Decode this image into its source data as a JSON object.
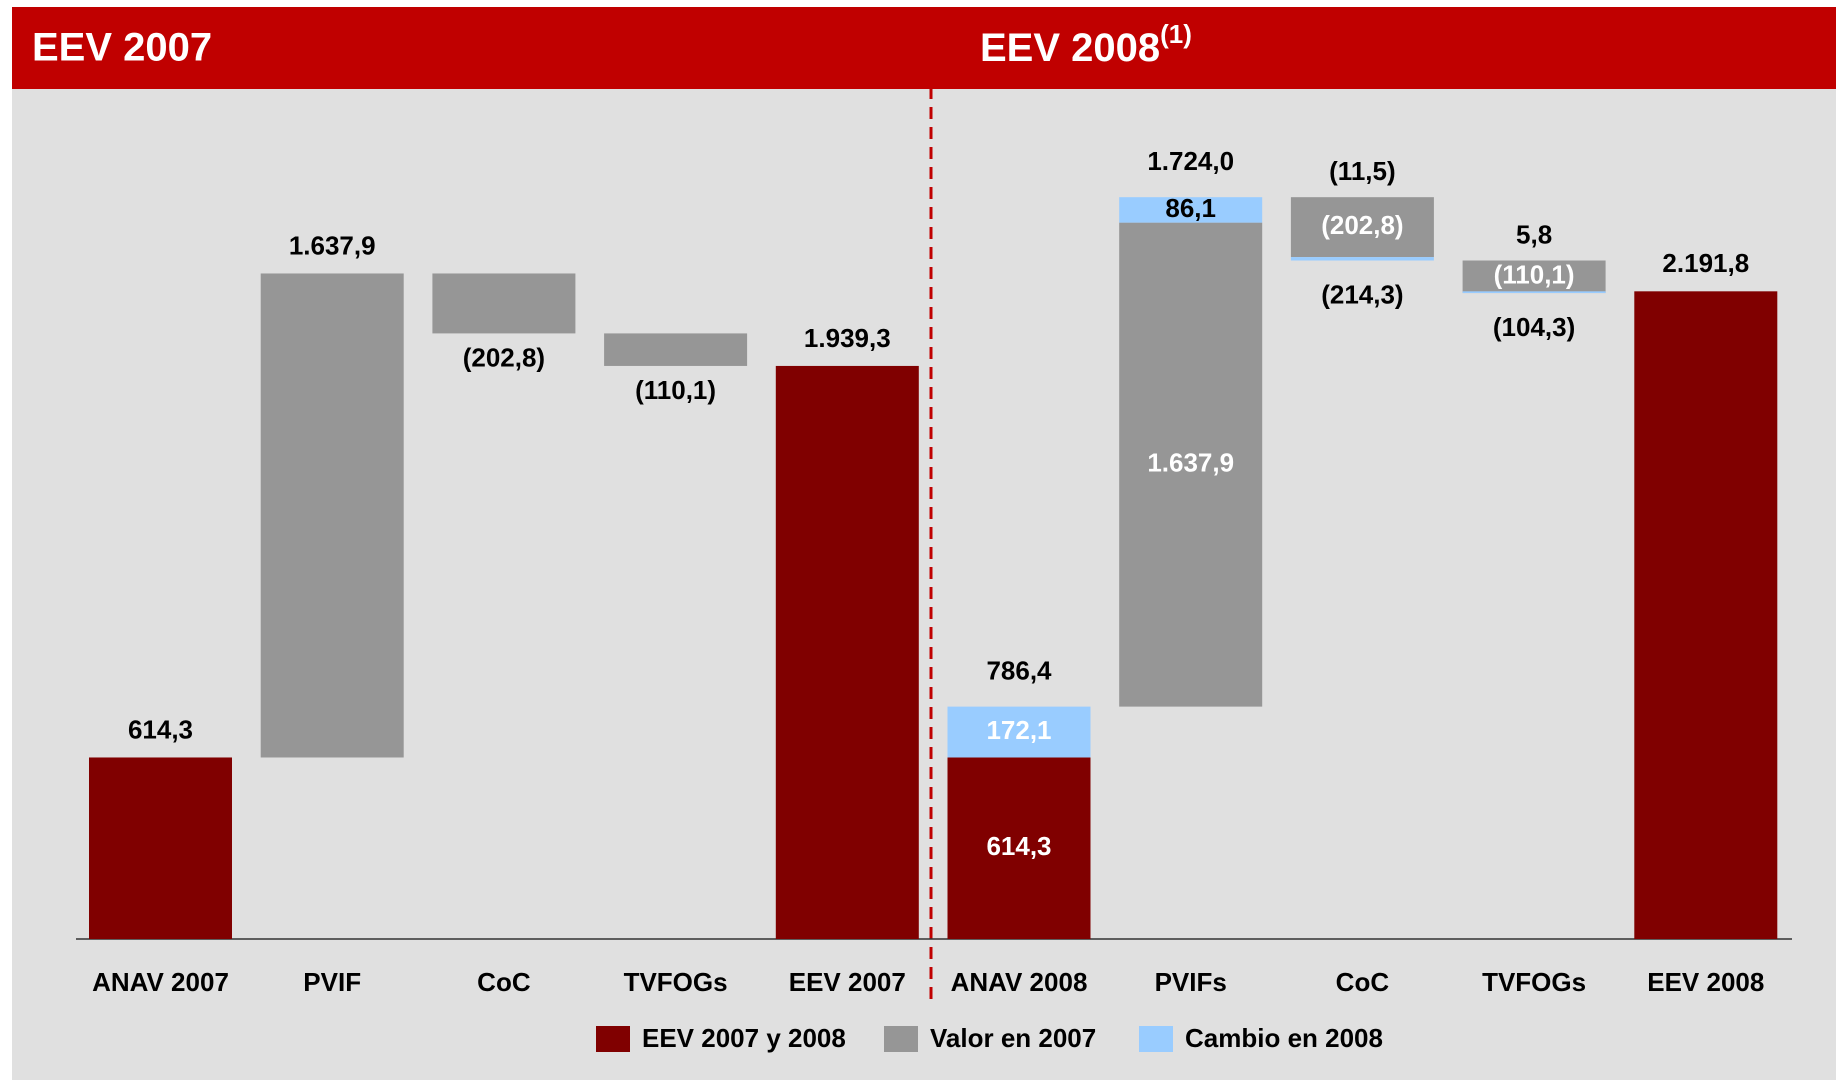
{
  "chart_data": {
    "type": "waterfall",
    "titles": [
      "EEV 2007",
      "EEV 2008"
    ],
    "title_note": "(1)",
    "categories": [
      "ANAV 2007",
      "PVIF",
      "CoC",
      "TVFOGs",
      "EEV 2007",
      "ANAV 2008",
      "PVIFs",
      "CoC",
      "TVFOGs",
      "EEV 2008"
    ],
    "series": [
      {
        "name": "EEV 2007 y 2008",
        "color": "#800000",
        "values": [
          614.3,
          null,
          null,
          null,
          1939.3,
          614.3,
          null,
          null,
          null,
          2191.8
        ],
        "value_labels": [
          "614,3",
          null,
          null,
          null,
          "1.939,3",
          "614,3",
          null,
          null,
          null,
          "2.191,8"
        ]
      },
      {
        "name": "Valor en 2007",
        "color": "#969696",
        "values": [
          null,
          1637.9,
          -202.8,
          -110.1,
          null,
          null,
          1637.9,
          -202.8,
          -110.1,
          null
        ],
        "value_labels": [
          null,
          "1.637,9",
          "(202,8)",
          "(110,1)",
          null,
          null,
          "1.637,9",
          "(202,8)",
          "(110,1)",
          null
        ]
      },
      {
        "name": "Cambio en 2008",
        "color": "#99ccff",
        "values": [
          null,
          null,
          null,
          null,
          null,
          172.1,
          86.1,
          -11.5,
          5.8,
          null
        ],
        "value_labels": [
          null,
          null,
          null,
          null,
          null,
          "172,1",
          "86,1",
          "(11,5)",
          "5,8",
          null
        ]
      }
    ],
    "totals": {
      "values": [
        null,
        null,
        null,
        null,
        null,
        786.4,
        1724.0,
        -214.3,
        -104.3,
        null
      ],
      "value_labels": [
        null,
        null,
        null,
        null,
        null,
        "786,4",
        "1.724,0",
        "(214,3)",
        "(104,3)",
        null
      ]
    }
  }
}
